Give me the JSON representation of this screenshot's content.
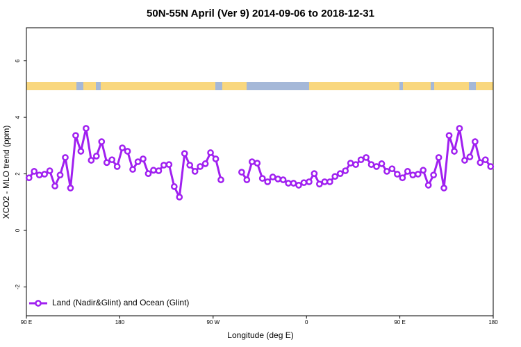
{
  "chart_data": {
    "type": "line",
    "title": "50N-55N April (Ver 9)   2014-09-06 to 2018-12-31",
    "x_label": "Longitude (deg E)",
    "y_label": "XCO2 - MLO trend (ppm)",
    "x": [
      92.5,
      97.5,
      102.5,
      107.5,
      112.5,
      117.5,
      122.5,
      127.5,
      132.5,
      137.5,
      142.5,
      147.5,
      152.5,
      157.5,
      162.5,
      167.5,
      172.5,
      177.5,
      182.5,
      187.5,
      192.5,
      197.5,
      202.5,
      207.5,
      212.5,
      217.5,
      222.5,
      227.5,
      232.5,
      237.5,
      242.5,
      247.5,
      252.5,
      257.5,
      262.5,
      267.5,
      272.5,
      277.5,
      282.5,
      287.5,
      292.5,
      297.5,
      302.5,
      307.5,
      312.5,
      317.5,
      322.5,
      327.5,
      332.5,
      337.5,
      342.5,
      347.5,
      352.5,
      357.5,
      362.5,
      367.5,
      372.5,
      377.5,
      382.5,
      387.5,
      392.5,
      397.5,
      402.5,
      407.5,
      412.5,
      417.5,
      422.5,
      427.5,
      432.5,
      437.5,
      442.5,
      447.5,
      452.5,
      457.5,
      462.5,
      467.5,
      472.5,
      477.5,
      482.5,
      487.5,
      492.5,
      497.5,
      502.5,
      507.5,
      512.5,
      517.5,
      522.5,
      527.5,
      532.5,
      537.5
    ],
    "series": [
      {
        "name": "Land (Nadir&Glint) and Ocean (Glint)",
        "color": "#a020f0",
        "values": [
          1.86,
          2.09,
          1.96,
          1.99,
          2.11,
          1.57,
          1.96,
          2.58,
          1.5,
          3.36,
          2.8,
          3.61,
          2.48,
          2.63,
          3.14,
          2.4,
          2.5,
          2.26,
          2.92,
          2.8,
          2.16,
          2.43,
          2.53,
          2.01,
          2.13,
          2.11,
          2.31,
          2.33,
          1.55,
          1.18,
          2.72,
          2.31,
          2.09,
          2.26,
          2.36,
          2.75,
          2.53,
          1.79,
          null,
          null,
          null,
          2.06,
          1.79,
          2.43,
          2.38,
          1.84,
          1.72,
          1.89,
          1.82,
          1.79,
          1.67,
          1.67,
          1.6,
          1.69,
          1.72,
          2.01,
          1.64,
          1.72,
          1.72,
          1.91,
          2.01,
          2.11,
          2.38,
          2.33,
          2.5,
          2.58,
          2.33,
          2.26,
          2.36,
          2.09,
          2.18,
          1.99,
          1.86,
          2.09,
          1.96,
          1.99,
          2.13,
          1.6,
          1.96,
          2.58,
          1.5,
          3.36,
          2.8,
          3.61,
          2.48,
          2.6,
          3.14,
          2.4,
          2.5,
          2.26
        ]
      }
    ],
    "xlim": [
      90,
      540
    ],
    "xticks": [
      {
        "value": 90,
        "label": "90 E"
      },
      180,
      {
        "value": 270,
        "label": "90 W"
      },
      {
        "value": 360,
        "label": "0"
      },
      {
        "value": 450,
        "label": "90 E"
      },
      {
        "value": 540,
        "label": "180"
      }
    ],
    "ylim": [
      -3.02,
      7.17
    ],
    "yticks": [
      -2,
      0,
      2,
      4,
      6
    ],
    "legend": "bottom-left"
  }
}
